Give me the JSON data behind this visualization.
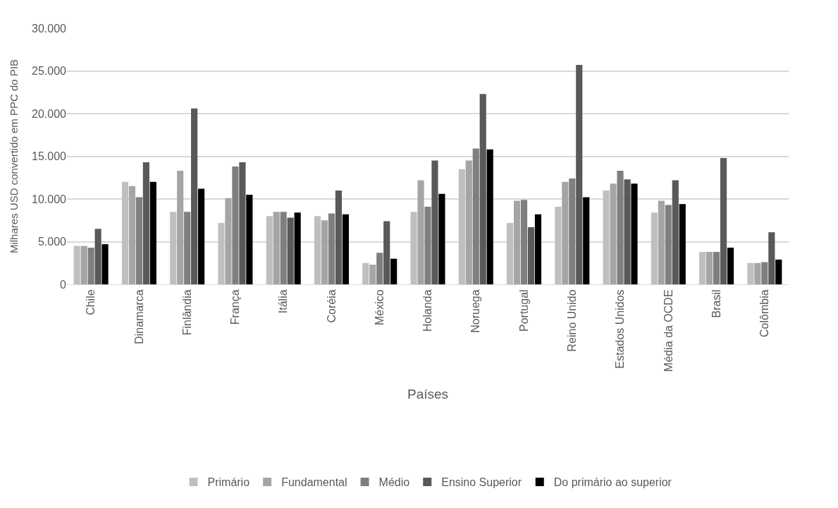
{
  "chart_data": {
    "type": "bar",
    "xlabel": "Países",
    "ylabel": "Milhares USD convertido em PPC do PIB",
    "categories": [
      "Chile",
      "Dinamarca",
      "Finlândia",
      "França",
      "Itália",
      "Coréia",
      "México",
      "Holanda",
      "Noruega",
      "Portugal",
      "Reino Unido",
      "Estados Unidos",
      "Média da OCDE",
      "Brasil",
      "Colômbia"
    ],
    "series": [
      {
        "name": "Primário",
        "color": "#bfbfbf",
        "values": [
          4500,
          12000,
          8500,
          7200,
          8000,
          8000,
          2500,
          8500,
          13500,
          7200,
          9100,
          11000,
          8400,
          3800,
          2500
        ]
      },
      {
        "name": "Fundamental",
        "color": "#a5a5a5",
        "values": [
          4500,
          11500,
          13300,
          10100,
          8500,
          7500,
          2300,
          12200,
          14500,
          9800,
          12000,
          11800,
          9800,
          3800,
          2500
        ]
      },
      {
        "name": "Médio",
        "color": "#7f7f7f",
        "values": [
          4300,
          10200,
          8500,
          13800,
          8500,
          8300,
          3700,
          9100,
          15900,
          9900,
          12400,
          13300,
          9300,
          3800,
          2600
        ]
      },
      {
        "name": "Ensino Superior",
        "color": "#595959",
        "values": [
          6500,
          14300,
          20600,
          14300,
          7800,
          11000,
          7400,
          14500,
          22300,
          6700,
          25700,
          12300,
          12200,
          14800,
          6100
        ]
      },
      {
        "name": "Do primário ao superior",
        "color": "#000000",
        "values": [
          4700,
          12000,
          11200,
          10500,
          8400,
          8200,
          3000,
          10600,
          15800,
          8200,
          10200,
          11800,
          9400,
          4300,
          2900
        ]
      }
    ],
    "ylim": [
      0,
      30000
    ],
    "yticks": [
      0,
      {
        "value": 5000,
        "label": "5.000"
      },
      {
        "value": 10000,
        "label": "10.000"
      },
      {
        "value": 15000,
        "label": "15.000"
      },
      {
        "value": 20000,
        "label": "20.000"
      },
      {
        "value": 25000,
        "label": "25.000"
      },
      {
        "value": 30000,
        "label": "30.000"
      }
    ],
    "grid": "y",
    "legend": "bottom"
  }
}
